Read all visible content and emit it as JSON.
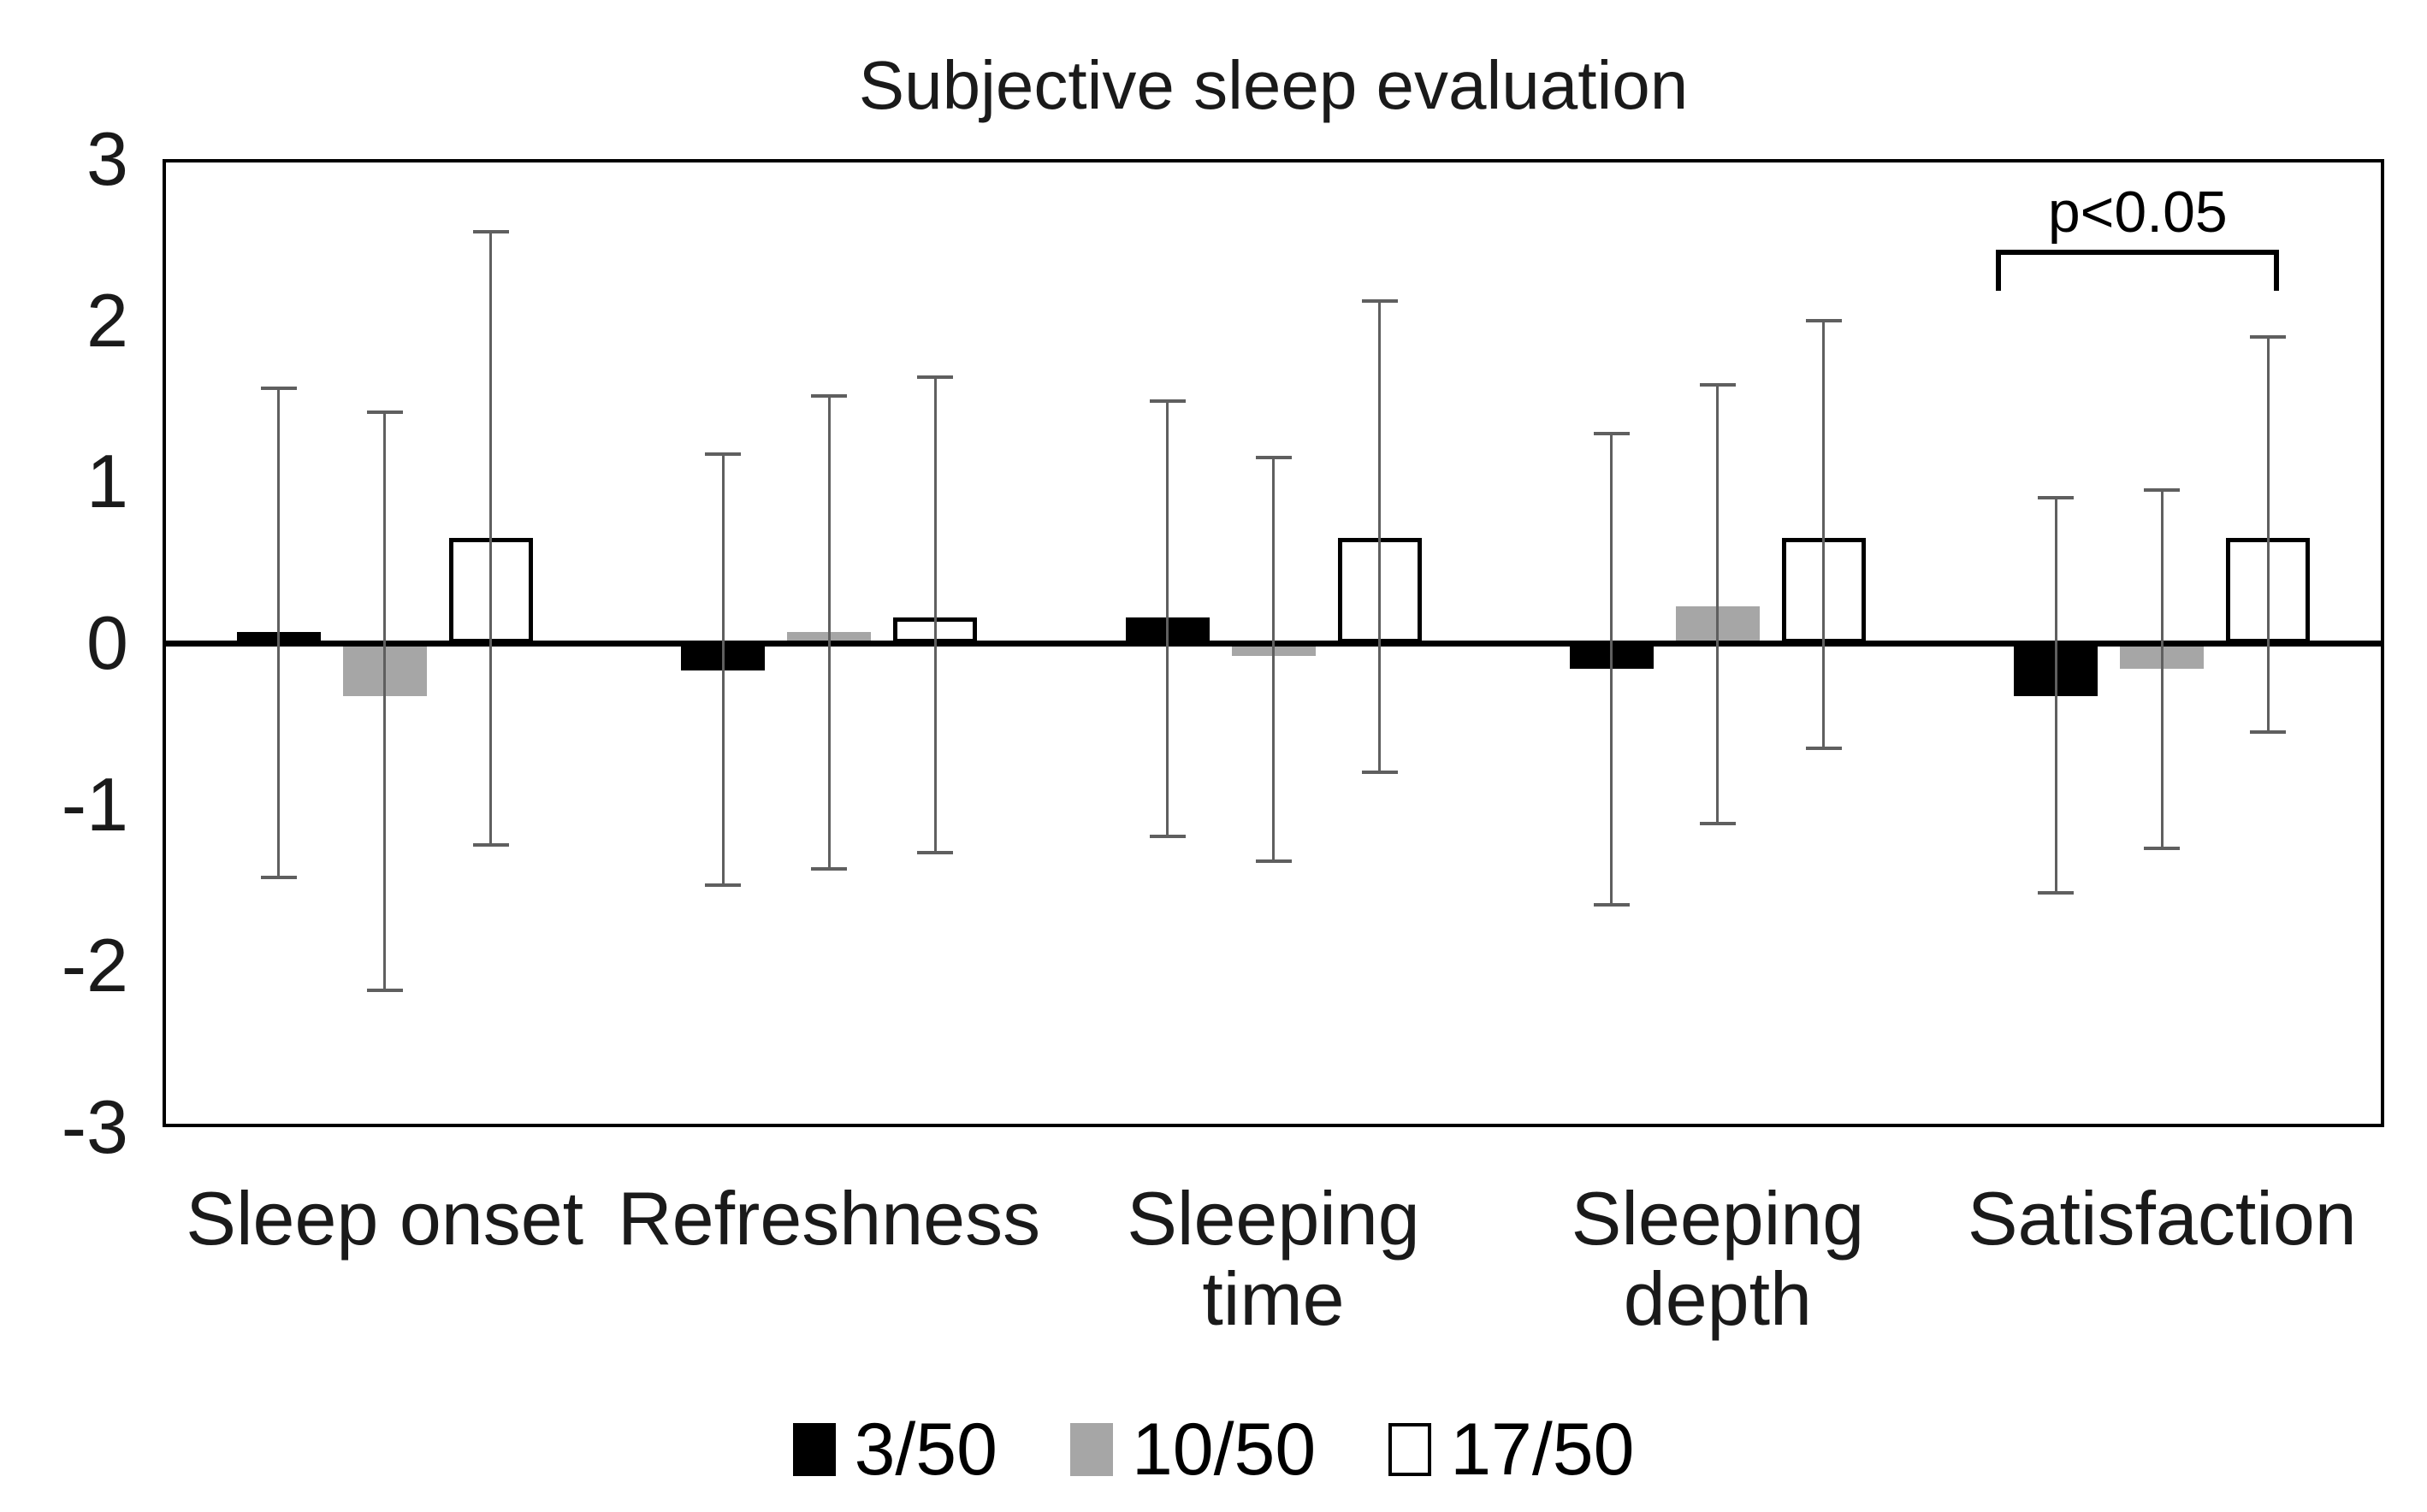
{
  "chart": {
    "significance_label": "p<0.05"
  },
  "chart_data": {
    "type": "bar",
    "title": "Subjective sleep evaluation",
    "xlabel": "",
    "ylabel": "",
    "ylim": [
      -3,
      3
    ],
    "grid": false,
    "legend_position": "bottom",
    "error_bar_color": "#5f5f5f",
    "frame_color": "#000000",
    "zero_line_color": "#000000",
    "yticks": [
      {
        "label": "3",
        "value": 3
      },
      {
        "label": "2",
        "value": 2
      },
      {
        "label": "1",
        "value": 1
      },
      {
        "label": "0",
        "value": 0
      },
      {
        "label": "-1",
        "value": -1
      },
      {
        "label": "-2",
        "value": -2
      },
      {
        "label": "-3",
        "value": -3
      }
    ],
    "categories": [
      "Sleep onset",
      "Refreshness",
      "Sleeping time",
      "Sleeping depth",
      "Satisfaction"
    ],
    "categories_display": [
      [
        "Sleep onset"
      ],
      [
        "Refreshness"
      ],
      [
        "Sleeping",
        "time"
      ],
      [
        "Sleeping",
        "depth"
      ],
      [
        "Satisfaction"
      ]
    ],
    "series": [
      {
        "name": "3/50",
        "color": "#000000",
        "border_color": "#000000",
        "values": [
          0.07,
          -0.17,
          0.16,
          -0.16,
          -0.33
        ],
        "error_top": [
          1.58,
          1.17,
          1.5,
          1.3,
          0.9
        ],
        "error_bottom": [
          -1.45,
          -1.5,
          -1.2,
          -1.62,
          -1.55
        ]
      },
      {
        "name": "10/50",
        "color": "#a6a6a6",
        "border_color": "#a6a6a6",
        "values": [
          -0.33,
          0.07,
          -0.08,
          0.23,
          -0.16
        ],
        "error_top": [
          1.43,
          1.53,
          1.15,
          1.6,
          0.95
        ],
        "error_bottom": [
          -2.15,
          -1.4,
          -1.35,
          -1.12,
          -1.27
        ]
      },
      {
        "name": "17/50",
        "color": "#ffffff",
        "border_color": "#000000",
        "values": [
          0.65,
          0.16,
          0.65,
          0.65,
          0.65
        ],
        "error_top": [
          2.55,
          1.65,
          2.12,
          2.0,
          1.9
        ],
        "error_bottom": [
          -1.25,
          -1.3,
          -0.8,
          -0.65,
          -0.55
        ]
      }
    ],
    "annotation": {
      "text": "p<0.05",
      "category": "Satisfaction",
      "from_series": "3/50",
      "to_series": "17/50",
      "y": 2.44
    }
  }
}
